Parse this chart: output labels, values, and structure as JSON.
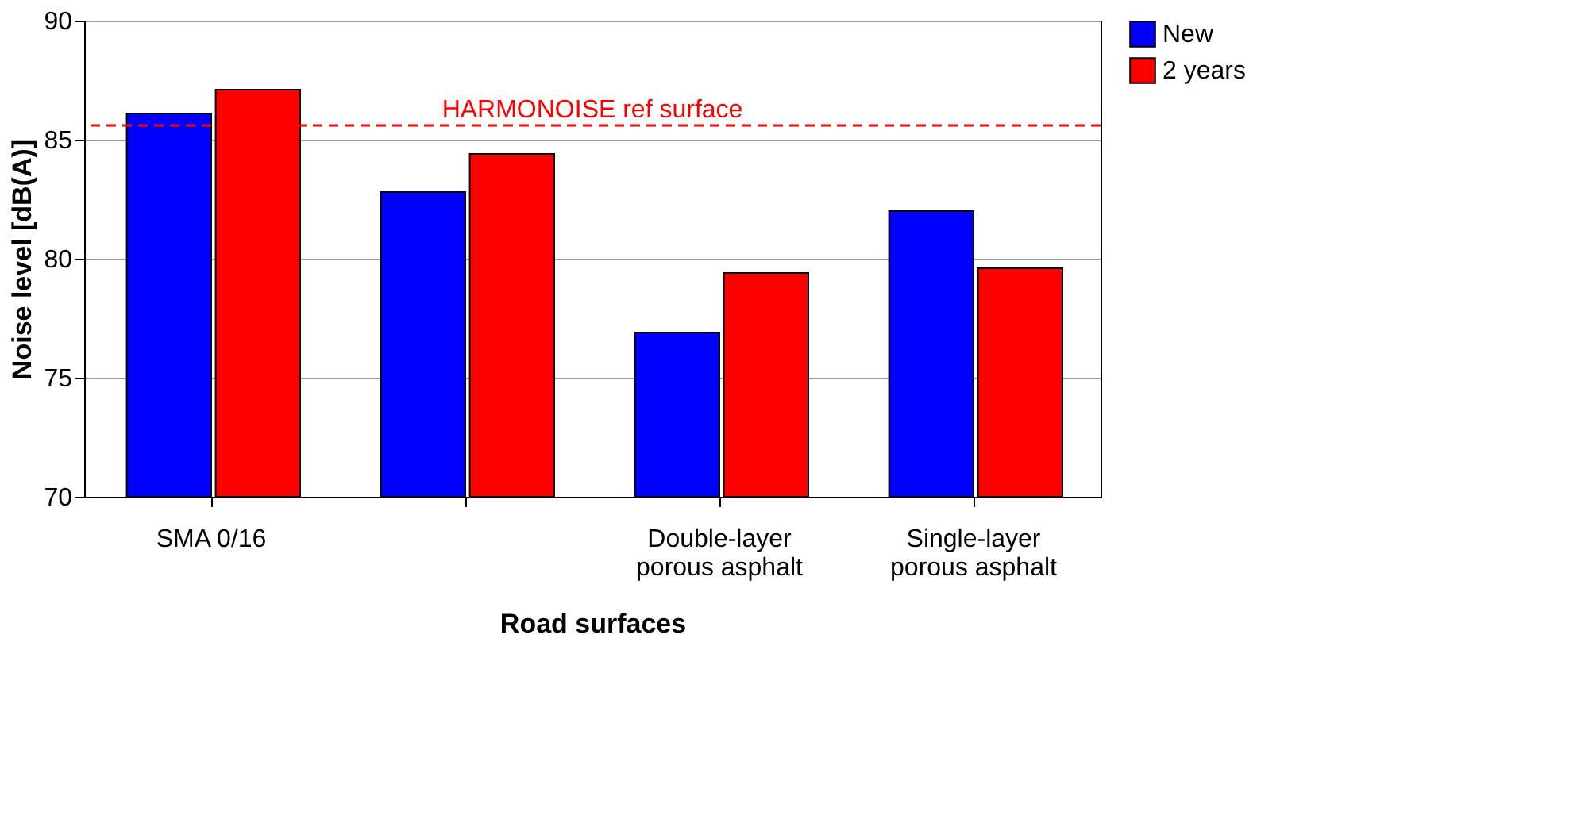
{
  "chart_data": {
    "type": "bar",
    "xlabel": "Road surfaces",
    "ylabel": "Noise level [dB(A)]",
    "categories": [
      "SMA 0/16",
      null,
      "Double-layer\nporous asphalt",
      "Single-layer\nporous asphalt"
    ],
    "series": [
      {
        "name": "New",
        "color": "#0000ff",
        "values": [
          86.1,
          82.8,
          76.9,
          82.0
        ]
      },
      {
        "name": "2 years",
        "color": "#ff0000",
        "values": [
          87.1,
          84.4,
          79.4,
          79.6
        ]
      }
    ],
    "ylim": [
      70,
      90
    ],
    "yticks": [
      70,
      75,
      80,
      85,
      90
    ],
    "grid": "y",
    "legend": "right",
    "ref_lines": [
      {
        "axis": "y",
        "value": 85.6,
        "label": "HARMONOISE ref surface",
        "color": "#ff0000",
        "line_style": "dashed"
      }
    ]
  }
}
